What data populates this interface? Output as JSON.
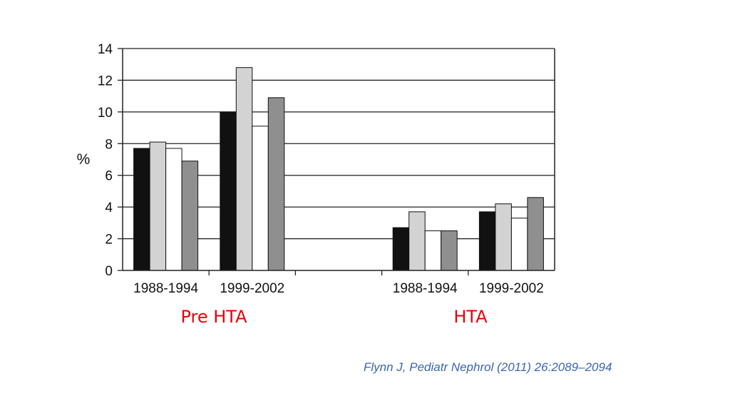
{
  "chart_data": {
    "type": "bar",
    "ylabel": "%",
    "ylim": [
      0,
      14
    ],
    "yticks": [
      "0",
      "2",
      "4",
      "6",
      "8",
      "10",
      "12",
      "14"
    ],
    "grid": true,
    "categories": [
      "1988-1994",
      "1999-2002",
      "1988-1994",
      "1999-2002"
    ],
    "groups": [
      {
        "label": "Pre HTA",
        "category_indices": [
          0,
          1
        ]
      },
      {
        "label": "HTA",
        "category_indices": [
          2,
          3
        ]
      }
    ],
    "series_colors": [
      "#111111",
      "#d3d3d3",
      "#ffffff",
      "#8f8f8f"
    ],
    "series": [
      {
        "values": [
          7.7,
          10.0,
          2.7,
          3.7
        ]
      },
      {
        "values": [
          8.1,
          12.8,
          3.7,
          4.2
        ]
      },
      {
        "values": [
          7.7,
          9.1,
          2.5,
          3.3
        ]
      },
      {
        "values": [
          6.9,
          10.9,
          2.5,
          4.6
        ]
      }
    ]
  },
  "labels": {
    "pre_hta": "Pre HTA",
    "hta": "HTA",
    "group_label_color": "#e8000b"
  },
  "citation": {
    "text": "Flynn J, Pediatr Nephrol (2011) 26:2089–2094",
    "color": "#3a66b0"
  }
}
